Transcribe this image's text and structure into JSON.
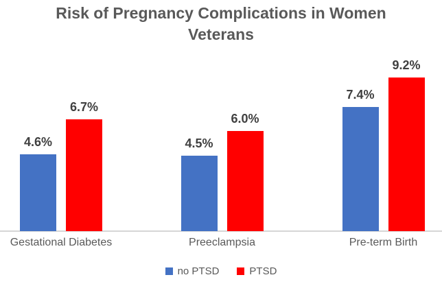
{
  "title": {
    "lines": [
      "Risk of Pregnancy Complications in Women",
      "Veterans"
    ],
    "color": "#595959"
  },
  "legend": {
    "items": [
      {
        "label": "no PTSD",
        "color": "#4472C4"
      },
      {
        "label": "PTSD",
        "color": "#FF0000"
      }
    ],
    "position": "bottom"
  },
  "chart_data": {
    "type": "bar",
    "title": "Risk of Pregnancy Complications in Women Veterans",
    "categories": [
      "Gestational Diabetes",
      "Preeclampsia",
      "Pre-term Birth"
    ],
    "series": [
      {
        "name": "no PTSD",
        "color": "#4472C4",
        "values": [
          4.6,
          4.5,
          7.4
        ],
        "labels": [
          "4.6%",
          "4.5%",
          "7.4%"
        ]
      },
      {
        "name": "PTSD",
        "color": "#FF0000",
        "values": [
          6.7,
          6.0,
          9.2
        ],
        "labels": [
          "6.7%",
          "6.0%",
          "9.2%"
        ]
      }
    ],
    "xlabel": "",
    "ylabel": "",
    "ylim": [
      0,
      10
    ],
    "grid": false,
    "data_labels": true,
    "legend_position": "bottom",
    "axis_line_color": "#d6d6d6",
    "label_color": "#3f3f3f",
    "category_label_color": "#595959"
  }
}
